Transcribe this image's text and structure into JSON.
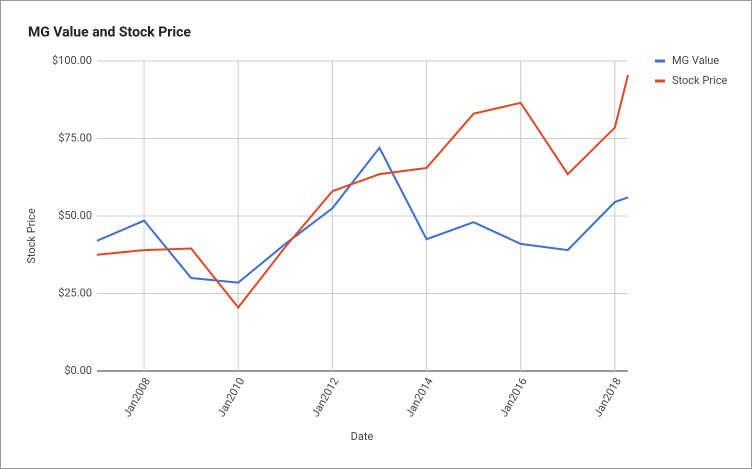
{
  "chart_data": {
    "type": "line",
    "title": "MG Value and Stock Price",
    "x_label": "Date",
    "y_label": "Stock Price",
    "x": [
      2007,
      2008,
      2009,
      2010,
      2011,
      2012,
      2013,
      2014,
      2015,
      2016,
      2017,
      2018,
      2018.28
    ],
    "series": [
      {
        "name": "MG Value",
        "color": "#3d6fcc",
        "values": [
          42,
          48.5,
          30,
          28.5,
          41,
          52.5,
          72,
          42.5,
          48,
          41,
          39,
          54.5,
          56
        ]
      },
      {
        "name": "Stock Price",
        "color": "#dc4a26",
        "values": [
          37.5,
          39,
          39.5,
          20.5,
          40,
          58,
          63.5,
          65.5,
          83,
          86.5,
          63.5,
          78.5,
          95.5
        ]
      }
    ],
    "xlim": [
      2007,
      2018.28
    ],
    "xticks": [
      {
        "value": 2008,
        "label": "Jan2008"
      },
      {
        "value": 2010,
        "label": "Jan2010"
      },
      {
        "value": 2012,
        "label": "Jan2012"
      },
      {
        "value": 2014,
        "label": "Jan2014"
      },
      {
        "value": 2016,
        "label": "Jan2016"
      },
      {
        "value": 2018,
        "label": "Jan2018"
      }
    ],
    "ylim": [
      0,
      100
    ],
    "yticks": [
      {
        "value": 0,
        "label": "$0.00"
      },
      {
        "value": 25,
        "label": "$25.00"
      },
      {
        "value": 50,
        "label": "$50.00"
      },
      {
        "value": 75,
        "label": "$75.00"
      },
      {
        "value": 100,
        "label": "$100.00"
      }
    ],
    "grid": true,
    "legend": "right"
  }
}
